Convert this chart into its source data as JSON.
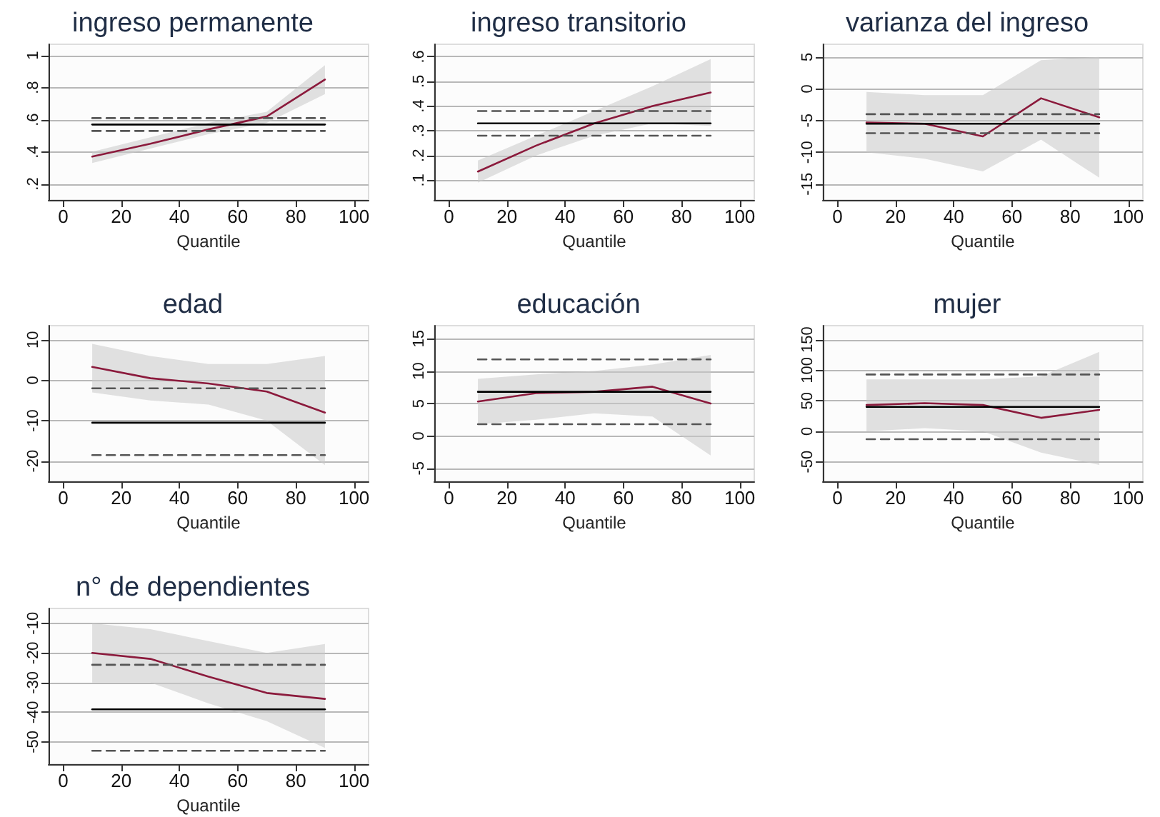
{
  "chart_data": [
    {
      "type": "line",
      "title": "ingreso permanente",
      "xlabel": "Quantile",
      "x": [
        10,
        30,
        50,
        70,
        90
      ],
      "xlim": [
        -5,
        105
      ],
      "xticks": [
        0,
        20,
        40,
        60,
        80,
        100
      ],
      "ylim": [
        0.1,
        1.07
      ],
      "yticks": [
        {
          "value": 0.2,
          "label": ".2"
        },
        {
          "value": 0.4,
          "label": ".4"
        },
        {
          "value": 0.6,
          "label": ".6"
        },
        {
          "value": 0.8,
          "label": ".8"
        },
        1
      ],
      "grid": "y",
      "marker": "none",
      "series": [
        {
          "color": "#8b1a3c",
          "values": [
            0.37,
            0.45,
            0.54,
            0.62,
            0.85
          ],
          "lower": [
            0.33,
            0.42,
            0.51,
            0.58,
            0.76
          ],
          "upper": [
            0.4,
            0.49,
            0.58,
            0.65,
            0.94
          ]
        },
        {
          "color": "#000000",
          "values": [
            0.57,
            0.57,
            0.57,
            0.57,
            0.57
          ],
          "line_style": "solid"
        },
        {
          "color": "#555555",
          "values": [
            0.61,
            0.61,
            0.61,
            0.61,
            0.61
          ],
          "line_style": "dashed"
        },
        {
          "color": "#555555",
          "values": [
            0.53,
            0.53,
            0.53,
            0.53,
            0.53
          ],
          "line_style": "dashed"
        }
      ]
    },
    {
      "type": "line",
      "title": "ingreso transitorio",
      "xlabel": "Quantile",
      "x": [
        10,
        30,
        50,
        70,
        90
      ],
      "xlim": [
        -5,
        105
      ],
      "xticks": [
        0,
        20,
        40,
        60,
        80,
        100
      ],
      "ylim": [
        0.02,
        0.65
      ],
      "yticks": [
        {
          "value": 0.1,
          "label": ".1"
        },
        {
          "value": 0.2,
          "label": ".2"
        },
        {
          "value": 0.3,
          "label": ".3"
        },
        {
          "value": 0.4,
          "label": ".4"
        },
        {
          "value": 0.5,
          "label": ".5"
        },
        {
          "value": 0.6,
          "label": ".6"
        }
      ],
      "grid": "y",
      "marker": "none",
      "series": [
        {
          "color": "#8b1a3c",
          "values": [
            0.135,
            0.24,
            0.33,
            0.4,
            0.455
          ],
          "lower": [
            0.09,
            0.2,
            0.28,
            0.33,
            0.32
          ],
          "upper": [
            0.18,
            0.28,
            0.38,
            0.48,
            0.59
          ]
        },
        {
          "color": "#000000",
          "values": [
            0.33,
            0.33,
            0.33,
            0.33,
            0.33
          ],
          "line_style": "solid"
        },
        {
          "color": "#555555",
          "values": [
            0.38,
            0.38,
            0.38,
            0.38,
            0.38
          ],
          "line_style": "dashed"
        },
        {
          "color": "#555555",
          "values": [
            0.28,
            0.28,
            0.28,
            0.28,
            0.28
          ],
          "line_style": "dashed"
        }
      ]
    },
    {
      "type": "line",
      "title": "varianza del ingreso",
      "xlabel": "Quantile",
      "x": [
        10,
        30,
        50,
        70,
        90
      ],
      "xlim": [
        -5,
        105
      ],
      "xticks": [
        0,
        20,
        40,
        60,
        80,
        100
      ],
      "ylim": [
        -17.5,
        7
      ],
      "yticks": [
        -15,
        -10,
        -5,
        0,
        5
      ],
      "grid": "y",
      "marker": "none",
      "series": [
        {
          "color": "#8b1a3c",
          "values": [
            -5.3,
            -5.5,
            -7.5,
            -1.5,
            -4.5
          ],
          "lower": [
            -10,
            -11,
            -13,
            -8,
            -14
          ],
          "upper": [
            -0.5,
            -1,
            -1,
            4.5,
            5
          ]
        },
        {
          "color": "#000000",
          "values": [
            -5.5,
            -5.5,
            -5.5,
            -5.5,
            -5.5
          ],
          "line_style": "solid"
        },
        {
          "color": "#555555",
          "values": [
            -4,
            -4,
            -4,
            -4,
            -4
          ],
          "line_style": "dashed"
        },
        {
          "color": "#555555",
          "values": [
            -7,
            -7,
            -7,
            -7,
            -7
          ],
          "line_style": "dashed"
        }
      ]
    },
    {
      "type": "line",
      "title": "edad",
      "xlabel": "Quantile",
      "x": [
        10,
        30,
        50,
        70,
        90
      ],
      "xlim": [
        -5,
        105
      ],
      "xticks": [
        0,
        20,
        40,
        60,
        80,
        100
      ],
      "ylim": [
        -25,
        13.5
      ],
      "yticks": [
        -20,
        -10,
        0,
        10
      ],
      "grid": "y",
      "marker": "none",
      "series": [
        {
          "color": "#8b1a3c",
          "values": [
            3.3,
            0.5,
            -0.8,
            -2.8,
            -8
          ],
          "lower": [
            -3,
            -5,
            -6,
            -10,
            -21
          ],
          "upper": [
            9,
            6,
            4,
            4,
            6
          ]
        },
        {
          "color": "#000000",
          "values": [
            -10.5,
            -10.5,
            -10.5,
            -10.5,
            -10.5
          ],
          "line_style": "solid"
        },
        {
          "color": "#555555",
          "values": [
            -2,
            -2,
            -2,
            -2,
            -2
          ],
          "line_style": "dashed"
        },
        {
          "color": "#555555",
          "values": [
            -18.5,
            -18.5,
            -18.5,
            -18.5,
            -18.5
          ],
          "line_style": "dashed"
        }
      ]
    },
    {
      "type": "line",
      "title": "educación",
      "xlabel": "Quantile",
      "x": [
        10,
        30,
        50,
        70,
        90
      ],
      "xlim": [
        -5,
        105
      ],
      "xticks": [
        0,
        20,
        40,
        60,
        80,
        100
      ],
      "ylim": [
        -7,
        17
      ],
      "yticks": [
        -5,
        0,
        5,
        10,
        15
      ],
      "grid": "y",
      "marker": "none",
      "series": [
        {
          "color": "#8b1a3c",
          "values": [
            5.3,
            6.6,
            6.8,
            7.6,
            5
          ],
          "lower": [
            1.8,
            2.5,
            3.5,
            3,
            -3
          ],
          "upper": [
            8.8,
            9.5,
            10,
            11,
            12.5
          ]
        },
        {
          "color": "#000000",
          "values": [
            6.8,
            6.8,
            6.8,
            6.8,
            6.8
          ],
          "line_style": "solid"
        },
        {
          "color": "#555555",
          "values": [
            11.8,
            11.8,
            11.8,
            11.8,
            11.8
          ],
          "line_style": "dashed"
        },
        {
          "color": "#555555",
          "values": [
            1.8,
            1.8,
            1.8,
            1.8,
            1.8
          ],
          "line_style": "dashed"
        }
      ]
    },
    {
      "type": "line",
      "title": "mujer",
      "xlabel": "Quantile",
      "x": [
        10,
        30,
        50,
        70,
        90
      ],
      "xlim": [
        -5,
        105
      ],
      "xticks": [
        0,
        20,
        40,
        60,
        80,
        100
      ],
      "ylim": [
        -82,
        173
      ],
      "yticks": [
        -50,
        0,
        50,
        100,
        150
      ],
      "grid": "y",
      "marker": "none",
      "series": [
        {
          "color": "#8b1a3c",
          "values": [
            43,
            46,
            43,
            22,
            35
          ],
          "lower": [
            0,
            5,
            0,
            -35,
            -55
          ],
          "upper": [
            85,
            85,
            85,
            90,
            130
          ]
        },
        {
          "color": "#000000",
          "values": [
            40,
            40,
            40,
            40,
            40
          ],
          "line_style": "solid"
        },
        {
          "color": "#555555",
          "values": [
            93,
            93,
            93,
            93,
            93
          ],
          "line_style": "dashed"
        },
        {
          "color": "#555555",
          "values": [
            -13,
            -13,
            -13,
            -13,
            -13
          ],
          "line_style": "dashed"
        }
      ]
    },
    {
      "type": "line",
      "title": "n° de dependientes",
      "xlabel": "Quantile",
      "x": [
        10,
        30,
        50,
        70,
        90
      ],
      "xlim": [
        -5,
        105
      ],
      "xticks": [
        0,
        20,
        40,
        60,
        80,
        100
      ],
      "ylim": [
        -57.5,
        -5
      ],
      "yticks": [
        -50,
        -40,
        -30,
        -20,
        -10
      ],
      "grid": "y",
      "marker": "none",
      "series": [
        {
          "color": "#8b1a3c",
          "values": [
            -20,
            -22,
            -28,
            -33.5,
            -35.5
          ],
          "lower": [
            -30,
            -30,
            -37,
            -43,
            -52
          ],
          "upper": [
            -10,
            -12,
            -16,
            -20,
            -17
          ]
        },
        {
          "color": "#000000",
          "values": [
            -39,
            -39,
            -39,
            -39,
            -39
          ],
          "line_style": "solid"
        },
        {
          "color": "#555555",
          "values": [
            -24,
            -24,
            -24,
            -24,
            -24
          ],
          "line_style": "dashed"
        },
        {
          "color": "#555555",
          "values": [
            -53,
            -53,
            -53,
            -53,
            -53
          ],
          "line_style": "dashed"
        }
      ]
    }
  ]
}
